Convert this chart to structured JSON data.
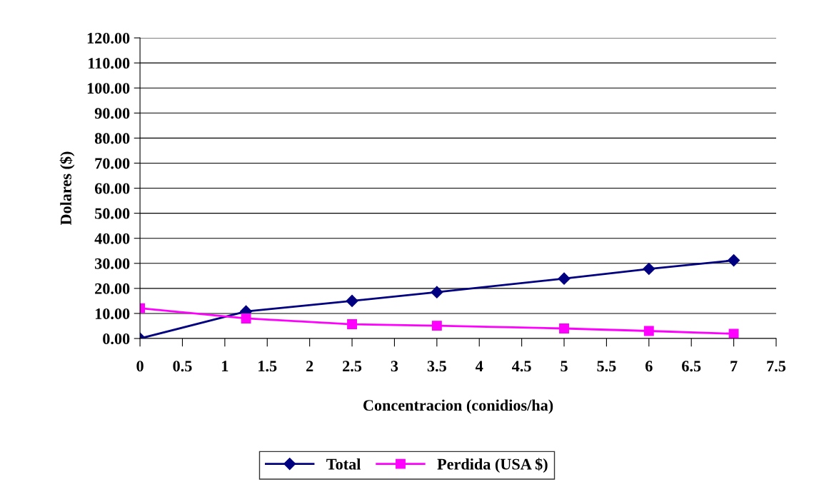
{
  "chart_data": {
    "type": "line",
    "xlabel": "Concentracion (conidios/ha)",
    "ylabel": "Dolares ($)",
    "x": [
      0,
      1.25,
      2.5,
      3.5,
      5,
      6,
      7
    ],
    "series": [
      {
        "name": "Total",
        "color": "#000080",
        "marker": "diamond",
        "values": [
          0,
          10.8,
          15.0,
          18.5,
          23.9,
          27.8,
          31.2
        ]
      },
      {
        "name": "Perdida (USA $)",
        "color": "#ff00ff",
        "marker": "square",
        "values": [
          12.1,
          8.0,
          5.7,
          5.1,
          4.0,
          3.0,
          1.9
        ]
      }
    ],
    "xlim": [
      0,
      7.5
    ],
    "xticks": [
      0,
      0.5,
      1,
      1.5,
      2,
      2.5,
      3,
      3.5,
      4,
      4.5,
      5,
      5.5,
      6,
      6.5,
      7,
      7.5
    ],
    "ylim": [
      0,
      120
    ],
    "yticks": [
      {
        "value": 0,
        "label": "0.00"
      },
      {
        "value": 10,
        "label": "10.00"
      },
      {
        "value": 20,
        "label": "20.00"
      },
      {
        "value": 30,
        "label": "30.00"
      },
      {
        "value": 40,
        "label": "40.00"
      },
      {
        "value": 50,
        "label": "50.00"
      },
      {
        "value": 60,
        "label": "60.00"
      },
      {
        "value": 70,
        "label": "70.00"
      },
      {
        "value": 80,
        "label": "80.00"
      },
      {
        "value": 90,
        "label": "90.00"
      },
      {
        "value": 100,
        "label": "100.00"
      },
      {
        "value": 110,
        "label": "110.00"
      },
      {
        "value": 120,
        "label": "120.00"
      }
    ],
    "grid": "y",
    "legend": "bottom",
    "line_style": "solid"
  }
}
